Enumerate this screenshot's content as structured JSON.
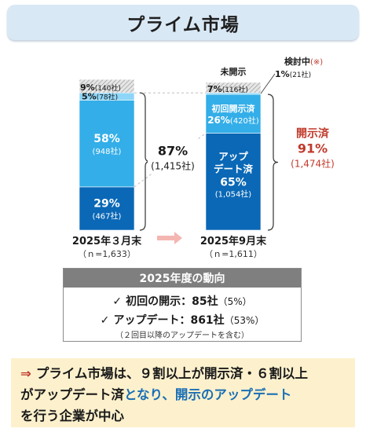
{
  "title": "プライム市場",
  "chart_data": {
    "type": "bar",
    "stacked": true,
    "categories": [
      "2025年３月末",
      "2025年9月末"
    ],
    "category_n": [
      "（ｎ=1,633）",
      "（ｎ=1,611）"
    ],
    "series": [
      {
        "name": "",
        "values": [
          29,
          65
        ],
        "counts": [
          "(467社)",
          "(1,054社)"
        ],
        "color": "#0a68b6"
      },
      {
        "name": "初回開示済",
        "values": [
          58,
          26
        ],
        "counts": [
          "(948社)",
          "(420社)"
        ],
        "color": "#33aee8"
      },
      {
        "name": "検討中",
        "values": [
          5,
          1
        ],
        "counts": [
          "(78社)",
          "(21社)"
        ],
        "color": "#8ed6f8"
      },
      {
        "name": "未開示",
        "values": [
          9,
          7
        ],
        "counts": [
          "(140社)",
          "(116社)"
        ],
        "color": "#cfcfcf"
      }
    ],
    "bar_labels": {
      "updated_name_line1": "アップ",
      "updated_name_line2": "デート済"
    },
    "march_disclosed": {
      "pct": "87%",
      "count": "(1,415社)"
    },
    "sept_disclosed": {
      "title": "開示済",
      "pct": "91%",
      "count": "(1,474社)"
    },
    "considering_mark": "(※)",
    "ylim": [
      0,
      100
    ]
  },
  "trend": {
    "header": "2025年度の動向",
    "initial": {
      "check": "✓",
      "label": "初回の開示：85社",
      "pct": "（5%）"
    },
    "update": {
      "check": "✓",
      "label": "アップデート：861社",
      "pct": "（53%）"
    },
    "note": "（２回目以降のアップデートを含む）"
  },
  "conclusion": {
    "arrow": "⇒",
    "line1": "プライム市場は、９割以上が開示済・６割以上",
    "line2a": "がアップデート済",
    "line2b": "となり、開示のアップデート",
    "line3": "を行う企業が中心"
  }
}
